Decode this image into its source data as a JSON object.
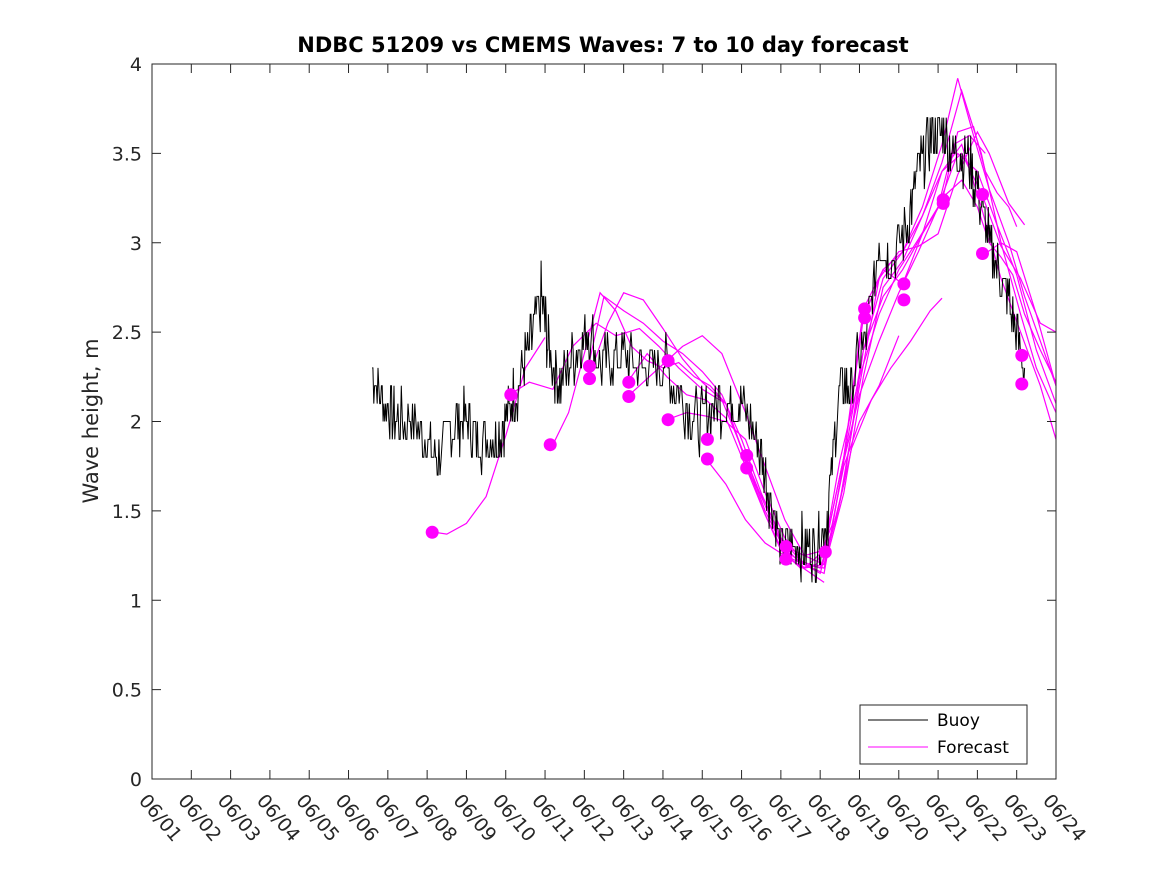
{
  "chart_data": {
    "type": "line",
    "title": "NDBC 51209 vs CMEMS Waves: 7 to 10 day forecast",
    "xlabel": "",
    "ylabel": "Wave height, m",
    "xlim": [
      1,
      24
    ],
    "ylim": [
      0,
      4
    ],
    "x_ticks": [
      1,
      2,
      3,
      4,
      5,
      6,
      7,
      8,
      9,
      10,
      11,
      12,
      13,
      14,
      15,
      16,
      17,
      18,
      19,
      20,
      21,
      22,
      23,
      24
    ],
    "x_tick_labels": [
      "06/01",
      "06/02",
      "06/03",
      "06/04",
      "06/05",
      "06/06",
      "06/07",
      "06/08",
      "06/09",
      "06/10",
      "06/11",
      "06/12",
      "06/13",
      "06/14",
      "06/15",
      "06/16",
      "06/17",
      "06/18",
      "06/19",
      "06/20",
      "06/21",
      "06/22",
      "06/23",
      "06/24"
    ],
    "y_ticks": [
      0,
      0.5,
      1,
      1.5,
      2,
      2.5,
      3,
      3.5,
      4
    ],
    "y_tick_labels": [
      "0",
      "0.5",
      "1",
      "1.5",
      "2",
      "2.5",
      "3",
      "3.5",
      "4"
    ],
    "grid": false,
    "legend_position": "bottom-right",
    "legend": [
      "Buoy",
      "Forecast"
    ],
    "colors": {
      "buoy": "#000000",
      "forecast": "#ff00ff"
    },
    "buoy": {
      "name": "Buoy",
      "x": [
        6.6,
        6.9,
        7.2,
        7.6,
        8.0,
        8.3,
        8.7,
        9.0,
        9.3,
        9.7,
        10.0,
        10.3,
        10.6,
        10.9,
        11.1,
        11.4,
        11.8,
        12.1,
        12.5,
        12.9,
        13.3,
        13.7,
        14.1,
        14.5,
        14.9,
        15.3,
        15.7,
        16.0,
        16.4,
        16.7,
        17.0,
        17.3,
        17.6,
        17.9,
        18.2,
        18.5,
        18.8,
        19.2,
        19.5,
        19.8,
        20.2,
        20.5,
        20.8,
        21.1,
        21.4,
        21.7,
        22.0,
        22.3,
        22.6,
        22.9,
        23.2
      ],
      "y": [
        2.3,
        2.1,
        2.0,
        2.0,
        1.9,
        1.8,
        2.0,
        2.0,
        1.9,
        1.9,
        2.0,
        2.2,
        2.4,
        2.7,
        2.4,
        2.2,
        2.4,
        2.5,
        2.3,
        2.4,
        2.3,
        2.3,
        2.3,
        2.1,
        2.0,
        2.1,
        2.1,
        2.1,
        1.9,
        1.6,
        1.3,
        1.3,
        1.3,
        1.3,
        1.5,
        2.2,
        2.2,
        2.5,
        3.0,
        2.9,
        3.1,
        3.4,
        3.6,
        3.6,
        3.5,
        3.5,
        3.3,
        3.0,
        2.8,
        2.6,
        2.3
      ]
    },
    "forecast_series": [
      {
        "x": [
          8.2,
          8.5,
          9.0,
          9.5,
          10.0,
          10.5,
          11.0
        ],
        "y": [
          1.38,
          1.37,
          1.43,
          1.58,
          1.92,
          2.3,
          2.47
        ]
      },
      {
        "x": [
          10.1,
          10.6,
          11.2,
          11.7,
          12.3,
          12.8,
          13.4,
          13.9,
          14.4,
          15.0,
          15.6,
          16.0,
          16.5,
          16.9,
          17.3,
          17.7,
          18.1
        ],
        "y": [
          2.15,
          2.22,
          2.18,
          2.42,
          2.55,
          2.48,
          2.52,
          2.42,
          2.3,
          2.18,
          2.1,
          1.85,
          1.58,
          1.38,
          1.22,
          1.16,
          1.1
        ]
      },
      {
        "x": [
          11.2,
          11.6,
          12.0,
          12.4,
          12.8,
          13.2,
          13.6,
          14.0,
          14.4,
          14.8,
          15.2,
          15.6,
          16.1,
          16.6,
          17.0,
          17.5,
          17.9,
          18.3,
          18.6,
          19.0,
          19.5,
          20.0
        ],
        "y": [
          1.87,
          2.05,
          2.38,
          2.72,
          2.62,
          2.42,
          2.34,
          2.3,
          2.33,
          2.25,
          2.2,
          2.1,
          1.78,
          1.48,
          1.28,
          1.18,
          1.2,
          1.42,
          1.75,
          2.0,
          2.2,
          2.48
        ]
      },
      {
        "x": [
          12.1,
          12.5,
          13.0,
          13.5,
          14.0,
          14.5,
          15.0,
          15.5,
          16.0,
          16.5,
          17.0,
          17.5,
          18.0,
          18.4,
          18.8,
          19.3,
          19.8,
          20.3,
          20.8,
          21.1
        ],
        "y": [
          2.31,
          2.7,
          2.62,
          2.55,
          2.45,
          2.38,
          2.28,
          2.15,
          1.9,
          1.6,
          1.35,
          1.22,
          1.18,
          1.45,
          1.85,
          2.12,
          2.3,
          2.45,
          2.62,
          2.69
        ]
      },
      {
        "x": [
          12.1,
          12.6,
          13.0,
          13.5,
          14.0,
          14.5,
          15.0,
          15.5,
          16.1,
          16.6,
          17.1,
          17.6,
          18.0,
          18.3,
          18.6,
          19.0,
          19.5,
          20.0,
          20.5,
          21.0,
          21.4,
          21.8,
          22.2
        ],
        "y": [
          2.24,
          2.55,
          2.72,
          2.68,
          2.52,
          2.35,
          2.22,
          2.12,
          1.8,
          1.5,
          1.28,
          1.2,
          1.15,
          1.4,
          1.78,
          2.15,
          2.45,
          2.72,
          2.95,
          3.2,
          3.55,
          3.6,
          3.5
        ]
      },
      {
        "x": [
          13.1,
          13.5,
          14.0,
          14.5,
          15.0,
          15.5,
          16.1,
          16.6,
          17.1,
          17.6,
          18.1,
          18.5,
          19.0,
          19.5,
          20.0,
          20.5,
          21.0,
          21.5,
          22.0,
          22.3,
          22.8,
          23.2
        ],
        "y": [
          2.14,
          2.22,
          2.32,
          2.42,
          2.48,
          2.38,
          2.05,
          1.75,
          1.45,
          1.25,
          1.2,
          1.55,
          2.2,
          2.8,
          2.95,
          2.98,
          3.05,
          3.38,
          3.62,
          3.5,
          3.22,
          3.1
        ]
      },
      {
        "x": [
          13.1,
          13.6,
          14.1,
          14.6,
          15.1,
          15.6,
          16.1,
          16.6,
          17.1,
          17.6,
          18.1,
          18.5,
          19.0,
          19.5,
          20.0,
          20.5,
          21.0,
          21.5,
          22.0,
          22.5,
          23.0,
          23.5,
          24.0
        ],
        "y": [
          2.22,
          2.38,
          2.25,
          2.15,
          2.12,
          2.02,
          1.75,
          1.48,
          1.25,
          1.18,
          1.28,
          1.78,
          2.25,
          2.6,
          2.85,
          3.02,
          3.2,
          3.5,
          3.4,
          3.1,
          2.82,
          2.4,
          2.1
        ]
      },
      {
        "x": [
          14.1,
          14.6,
          15.1,
          15.6,
          16.1,
          16.6,
          17.1,
          17.6,
          18.1,
          18.6,
          19.1,
          19.6,
          20.1,
          20.6,
          21.1,
          21.6,
          22.1,
          22.6,
          23.1,
          23.6,
          24.0
        ],
        "y": [
          2.01,
          2.05,
          2.03,
          2.0,
          1.9,
          1.6,
          1.35,
          1.2,
          1.15,
          1.78,
          2.4,
          2.7,
          2.85,
          3.05,
          3.4,
          3.55,
          3.2,
          2.8,
          2.5,
          2.2,
          1.9
        ]
      },
      {
        "x": [
          15.1,
          15.6,
          16.1,
          16.6,
          17.1,
          17.6,
          18.1,
          18.6,
          19.1,
          19.6,
          20.1,
          20.6,
          21.1,
          21.6,
          22.1,
          22.6,
          23.1,
          23.5,
          24.0
        ],
        "y": [
          1.79,
          1.65,
          1.45,
          1.32,
          1.25,
          1.2,
          1.18,
          1.6,
          2.25,
          2.75,
          2.9,
          3.15,
          3.45,
          3.85,
          3.5,
          3.0,
          2.6,
          2.3,
          2.05
        ]
      },
      {
        "x": [
          16.1,
          16.6,
          17.1,
          17.6,
          18.1,
          18.6,
          19.1,
          19.6,
          20.1,
          20.6,
          21.1,
          21.5,
          21.9,
          22.3,
          22.8,
          23.2,
          23.6,
          24.0
        ],
        "y": [
          1.74,
          1.55,
          1.3,
          1.18,
          1.2,
          1.65,
          2.4,
          2.8,
          2.95,
          3.2,
          3.55,
          3.92,
          3.6,
          3.3,
          3.0,
          2.7,
          2.45,
          2.2
        ]
      },
      {
        "x": [
          17.1,
          17.6,
          18.1,
          18.6,
          19.1,
          19.6,
          20.1,
          20.6,
          21.1,
          21.6,
          22.1,
          22.6,
          23.1,
          23.6,
          24.0
        ],
        "y": [
          1.3,
          1.25,
          1.28,
          1.8,
          2.58,
          2.85,
          2.95,
          3.15,
          3.4,
          3.5,
          3.28,
          2.98,
          2.8,
          2.55,
          2.5
        ]
      },
      {
        "x": [
          18.1,
          18.6,
          19.1,
          19.6,
          20.1,
          20.6,
          21.1,
          21.5,
          21.9,
          22.2,
          22.5,
          22.8,
          23.0
        ],
        "y": [
          1.27,
          1.8,
          2.63,
          2.85,
          2.77,
          3.05,
          3.23,
          3.62,
          3.65,
          3.4,
          3.28,
          3.2,
          3.09
        ]
      },
      {
        "x": [
          21.2,
          21.6,
          22.0,
          22.3,
          22.6,
          22.9,
          23.2,
          23.6,
          24.0
        ],
        "y": [
          3.27,
          3.35,
          3.2,
          3.0,
          2.92,
          2.82,
          2.6,
          2.4,
          2.22
        ]
      },
      {
        "x": [
          22.2,
          22.6,
          23.0,
          23.5,
          24.0
        ],
        "y": [
          2.94,
          3.0,
          2.95,
          2.6,
          2.2
        ]
      }
    ],
    "forecast_markers": {
      "x": [
        8.13,
        10.13,
        11.13,
        12.13,
        12.13,
        13.13,
        13.13,
        14.13,
        14.13,
        15.13,
        15.13,
        16.13,
        16.13,
        17.13,
        17.13,
        18.13,
        19.13,
        19.13,
        20.13,
        20.13,
        21.13,
        21.13,
        22.13,
        22.13,
        23.13,
        23.13
      ],
      "y": [
        1.38,
        2.15,
        1.87,
        2.31,
        2.24,
        2.22,
        2.14,
        2.34,
        2.01,
        1.9,
        1.79,
        1.81,
        1.74,
        1.3,
        1.23,
        1.27,
        2.63,
        2.58,
        2.77,
        2.68,
        3.24,
        3.22,
        3.27,
        2.94,
        2.37,
        2.21
      ]
    }
  }
}
